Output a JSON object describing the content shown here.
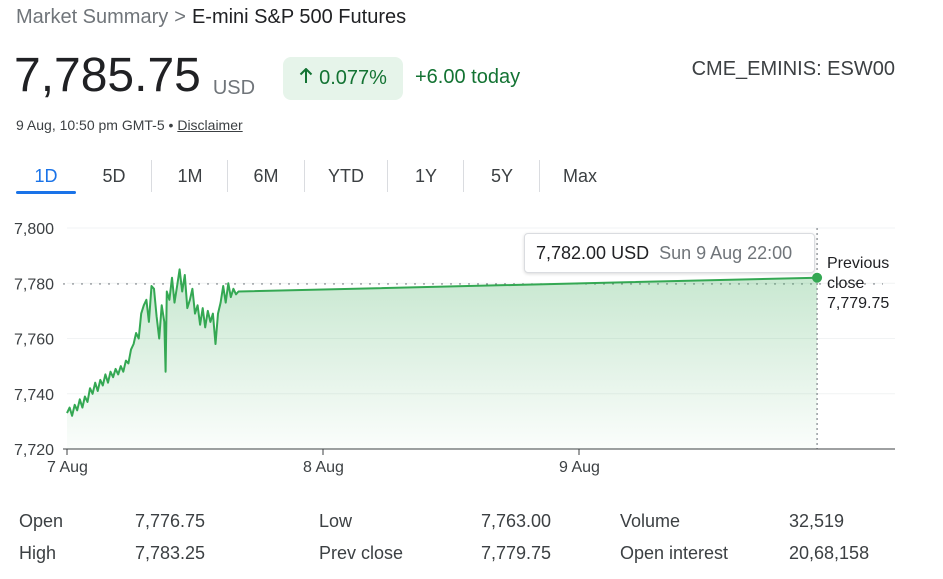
{
  "breadcrumb": {
    "parent": "Market Summary",
    "separator": ">",
    "current": "E-mini S&P 500 Futures"
  },
  "quote": {
    "price": "7,785.75",
    "currency": "USD",
    "change_percent": "0.077%",
    "change_today": "+6.00 today",
    "exchange": "CME_EMINIS: ESW00",
    "timestamp": "9 Aug, 10:50 pm GMT-5",
    "bullet": "•",
    "disclaimer": "Disclaimer"
  },
  "colors": {
    "up_green": "#137333",
    "line_green": "#34a853",
    "accent_blue": "#1a73e8"
  },
  "icons": {
    "change_arrow": "arrow-up-icon"
  },
  "tabs": [
    {
      "label": "1D",
      "active": true
    },
    {
      "label": "5D",
      "active": false
    },
    {
      "label": "1M",
      "active": false
    },
    {
      "label": "6M",
      "active": false
    },
    {
      "label": "YTD",
      "active": false
    },
    {
      "label": "1Y",
      "active": false
    },
    {
      "label": "5Y",
      "active": false
    },
    {
      "label": "Max",
      "active": false
    }
  ],
  "tooltip": {
    "price": "7,782.00 USD",
    "time": "Sun 9 Aug 22:00"
  },
  "previous_close_label": {
    "line1": "Previous",
    "line2": "close",
    "value": "7,779.75"
  },
  "chart_data": {
    "type": "line",
    "ylim": [
      7720,
      7800
    ],
    "yticks": [
      {
        "value": 7800,
        "label": "7,800"
      },
      {
        "value": 7780,
        "label": "7,780"
      },
      {
        "value": 7760,
        "label": "7,760"
      },
      {
        "value": 7740,
        "label": "7,740"
      },
      {
        "value": 7720,
        "label": "7,720"
      }
    ],
    "xlim": [
      0,
      2.96
    ],
    "xticks": [
      {
        "value": 0,
        "label": "7 Aug"
      },
      {
        "value": 1,
        "label": "8 Aug"
      },
      {
        "value": 2,
        "label": "9 Aug"
      }
    ],
    "previous_close": 7779.75,
    "grid": true,
    "series": [
      {
        "x": [
          0.0,
          0.01,
          0.02,
          0.03,
          0.04,
          0.05,
          0.06,
          0.07,
          0.08,
          0.09,
          0.1,
          0.11,
          0.12,
          0.13,
          0.14,
          0.15,
          0.16,
          0.17,
          0.18,
          0.19,
          0.2,
          0.21,
          0.22,
          0.23,
          0.24,
          0.25,
          0.26,
          0.27,
          0.28,
          0.29,
          0.3,
          0.31,
          0.32,
          0.33,
          0.34,
          0.35,
          0.36,
          0.37,
          0.38,
          0.385,
          0.39,
          0.4,
          0.41,
          0.42,
          0.43,
          0.44,
          0.45,
          0.46,
          0.47,
          0.48,
          0.49,
          0.5,
          0.51,
          0.52,
          0.53,
          0.54,
          0.55,
          0.56,
          0.57,
          0.58,
          0.59,
          0.6,
          0.61,
          0.62,
          0.63,
          0.64,
          0.65,
          0.66,
          0.67,
          2.93
        ],
        "y": [
          7733,
          7735,
          7732,
          7736,
          7734,
          7738,
          7735,
          7739,
          7737,
          7742,
          7740,
          7744,
          7741,
          7745,
          7743,
          7747,
          7744,
          7748,
          7746,
          7749,
          7747,
          7750,
          7748,
          7752,
          7751,
          7756,
          7758,
          7762,
          7760,
          7769,
          7772,
          7774,
          7766,
          7779,
          7778,
          7768,
          7760,
          7772,
          7766,
          7748,
          7777,
          7774,
          7782,
          7773,
          7779,
          7785,
          7777,
          7783,
          7771,
          7774,
          7778,
          7769,
          7772,
          7765,
          7771,
          7764,
          7770,
          7766,
          7769,
          7758,
          7769,
          7773,
          7779,
          7773,
          7780,
          7775,
          7778,
          7776,
          7777,
          7782
        ]
      }
    ]
  },
  "stats": [
    {
      "label": "Open",
      "value": "7,776.75"
    },
    {
      "label": "High",
      "value": "7,783.25"
    },
    {
      "label": "Low",
      "value": "7,763.00"
    },
    {
      "label": "Prev close",
      "value": "7,779.75"
    },
    {
      "label": "Volume",
      "value": "32,519"
    },
    {
      "label": "Open interest",
      "value": "20,68,158"
    }
  ]
}
